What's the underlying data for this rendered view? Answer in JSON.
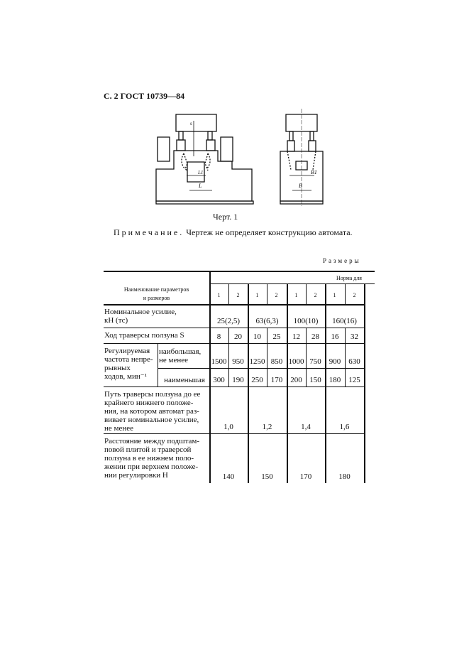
{
  "header": "С. 2 ГОСТ 10739—84",
  "figure": {
    "caption": "Черт. 1",
    "labels": [
      "s",
      "h",
      "h1",
      "L1",
      "L",
      "B1",
      "B"
    ]
  },
  "note": {
    "label": "Примечание.",
    "text": " Чертеж не определяет конструкцию автомата."
  },
  "table": {
    "caption": "Размеры",
    "header_name": "Наименование параметров\nи размеров",
    "header_norm": "Норма для",
    "subcols": [
      "1",
      "2",
      "1",
      "2",
      "1",
      "2",
      "1",
      "2"
    ],
    "rows": [
      {
        "name": "Номинальное усилие,\nкН (тс)",
        "values": [
          "25(2,5)",
          "63(6,3)",
          "100(10)",
          "160(16)"
        ]
      },
      {
        "name": "Ход траверсы ползуна S",
        "values": [
          "8",
          "20",
          "10",
          "25",
          "12",
          "28",
          "16",
          "32"
        ]
      },
      {
        "name": "Регулируемая\nчастота непре-\nрывных\nходов, мин⁻¹",
        "sub": "наибольшая,\nне менее",
        "values": [
          "1500",
          "950",
          "1250",
          "850",
          "1000",
          "750",
          "900",
          "630"
        ]
      },
      {
        "sub": "наименьшая",
        "values": [
          "300",
          "190",
          "250",
          "170",
          "200",
          "150",
          "180",
          "125"
        ]
      },
      {
        "name": "Путь траверсы ползуна до ее\nкрайнего нижнего положе-\nния, на котором автомат раз-\nвивает номинальное усилие,\nне менее",
        "values": [
          "1,0",
          "1,2",
          "1,4",
          "1,6"
        ]
      },
      {
        "name": "Расстояние между подштам-\nповой плитой и траверсой\nползуна в ее нижнем поло-\nжении при верхнем положе-\nнии регулировки Н",
        "values": [
          "140",
          "150",
          "170",
          "180"
        ]
      }
    ]
  }
}
